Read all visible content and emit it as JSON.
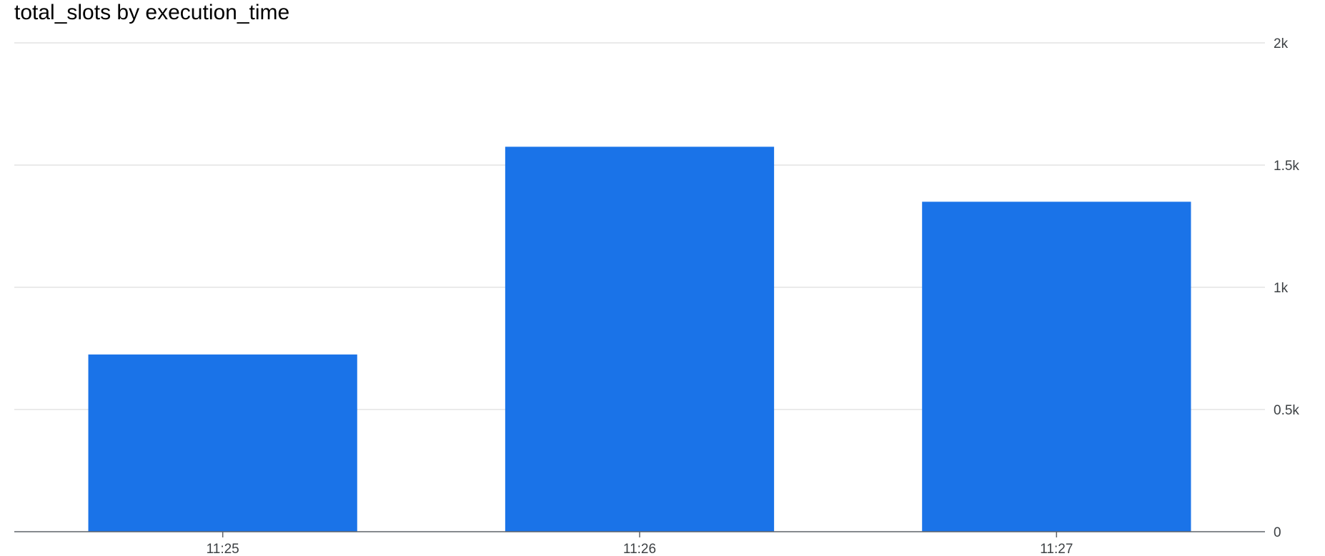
{
  "chart_data": {
    "type": "bar",
    "title": "total_slots by execution_time",
    "xlabel": "",
    "ylabel": "",
    "categories": [
      "11:25",
      "11:26",
      "11:27"
    ],
    "series": [
      {
        "values": [
          725,
          1575,
          1350
        ],
        "color": "#1a73e8"
      }
    ],
    "ylim": [
      0,
      2000
    ],
    "yticks": [
      0,
      500,
      1000,
      1500,
      2000
    ],
    "ytick_labels": [
      "0",
      "0.5k",
      "1k",
      "1.5k",
      "2k"
    ],
    "y_axis_position": "right",
    "grid": true,
    "legend": "none"
  }
}
